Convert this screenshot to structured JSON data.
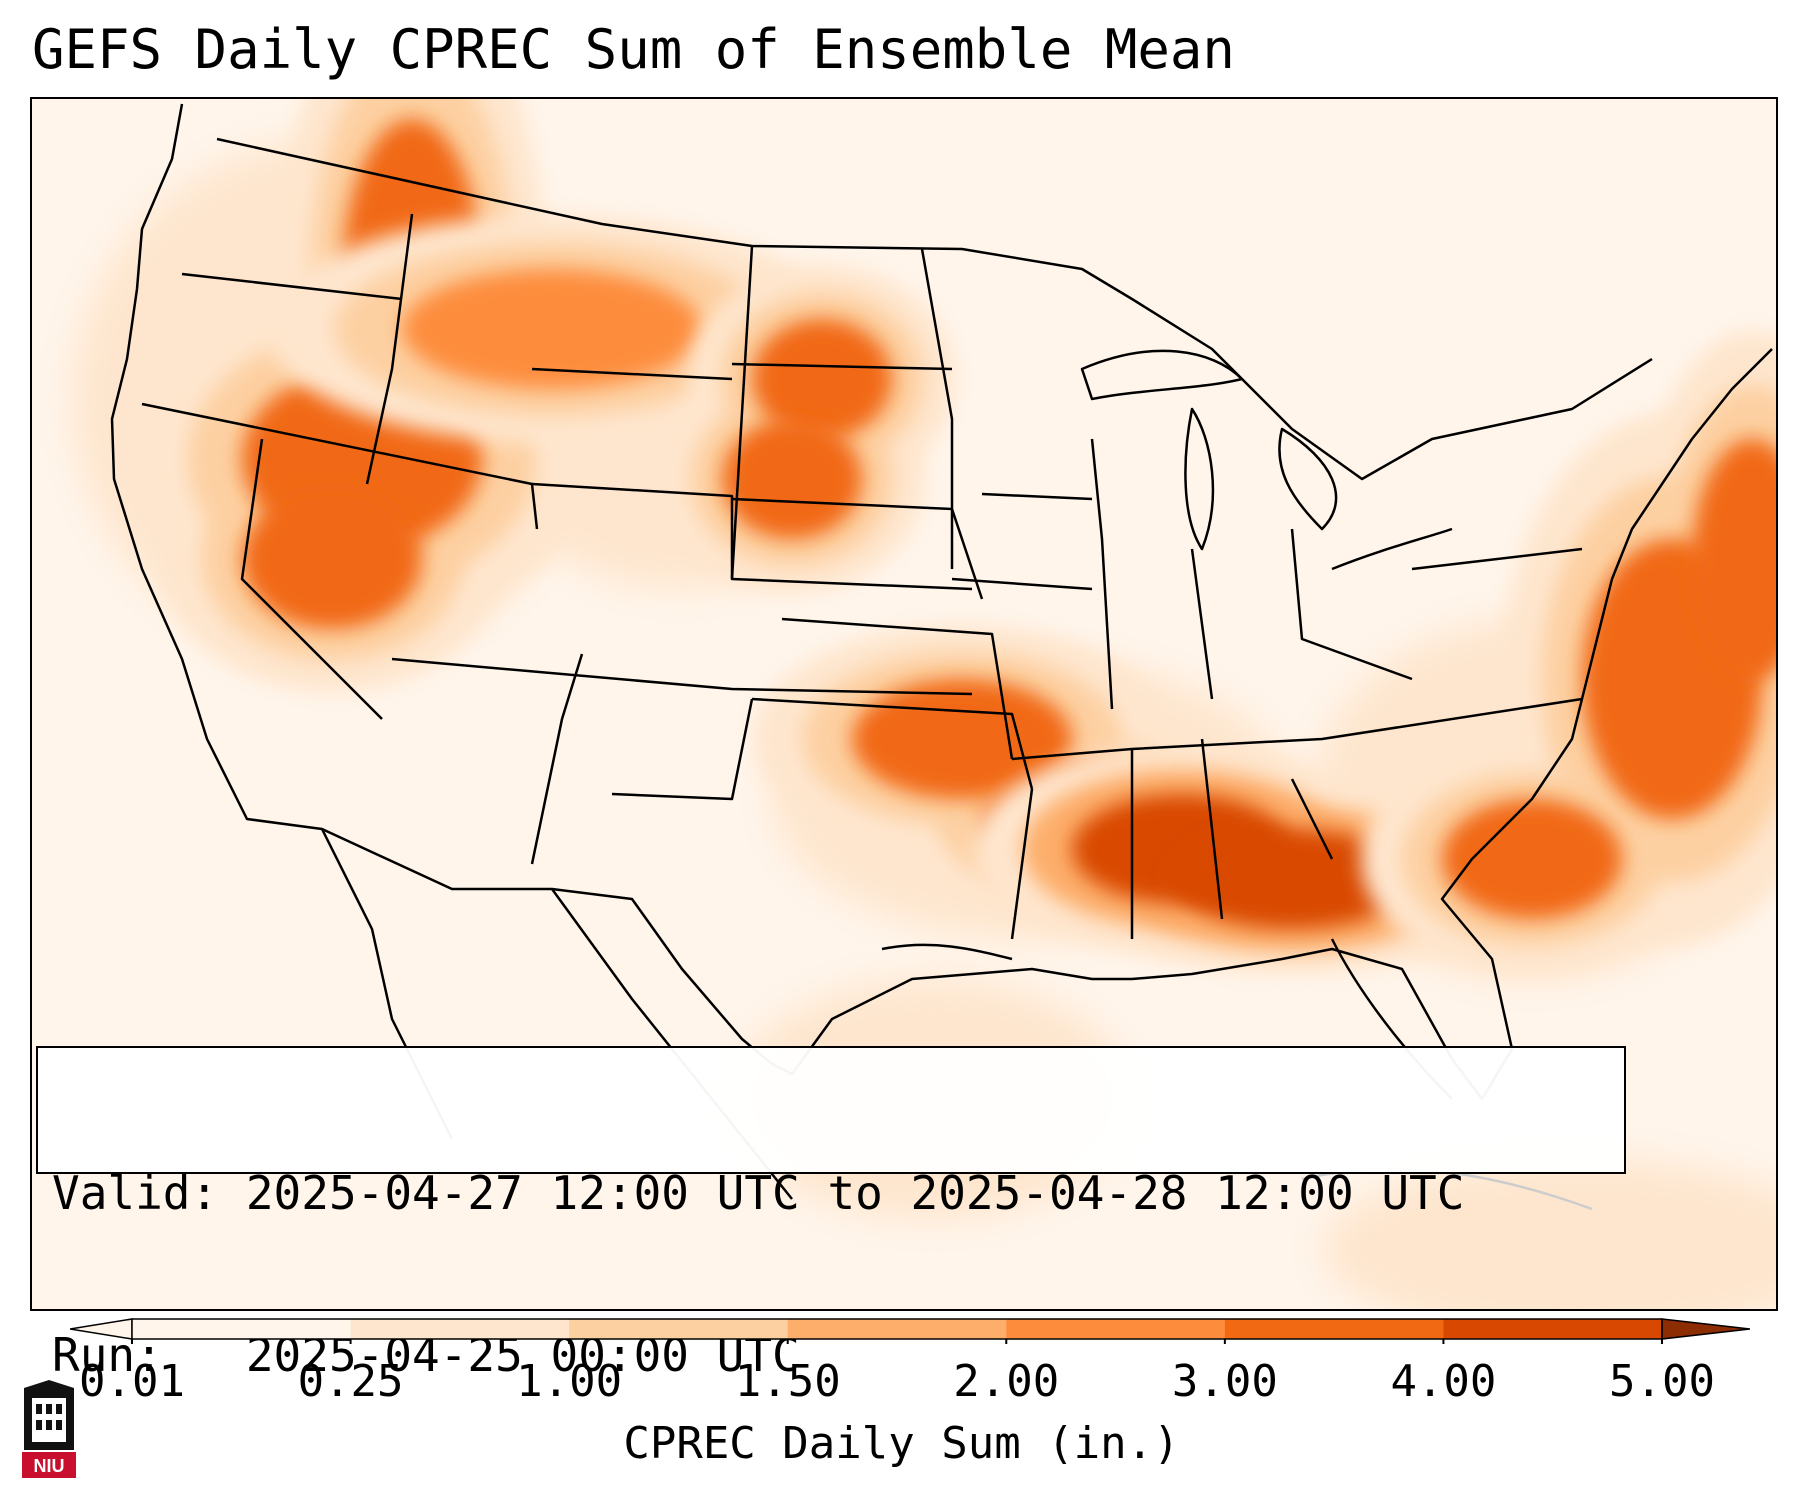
{
  "title": "GEFS Daily CPREC Sum of Ensemble Mean",
  "info": {
    "valid_line": "Valid: 2025-04-27 12:00 UTC to 2025-04-28 12:00 UTC",
    "run_line": "Run:   2025-04-25 00:00 UTC"
  },
  "colorbar": {
    "label": "CPREC Daily Sum (in.)",
    "ticks": [
      "0.01",
      "0.25",
      "1.00",
      "1.50",
      "2.00",
      "3.00",
      "4.00",
      "5.00"
    ],
    "colors": [
      "#fff5eb",
      "#fee6ce",
      "#fdd0a2",
      "#fdae6b",
      "#fd8d3c",
      "#f16913",
      "#d94801",
      "#8c2d04"
    ],
    "extend": "both"
  },
  "logo": {
    "text": "NIU",
    "icon": "niu-tower-logo"
  },
  "precip_bands": [
    {
      "name": "Pacific Northwest / Idaho",
      "level": 4
    },
    {
      "name": "Montana",
      "level": 3
    },
    {
      "name": "Dakotas",
      "level": 4
    },
    {
      "name": "Oklahoma / Arkansas",
      "level": 4
    },
    {
      "name": "Mississippi / Alabama",
      "level": 5
    },
    {
      "name": "Atlantic offshore",
      "level": 4
    }
  ]
}
